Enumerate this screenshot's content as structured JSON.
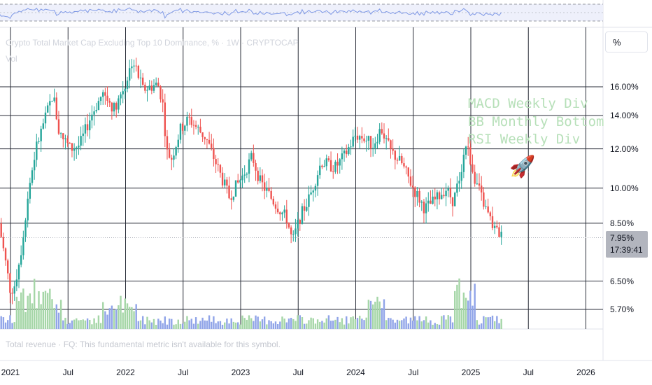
{
  "header": {
    "title": "Crypto Total Market Cap Excluding Top 10 Dominance, % · 1W · CRYPTOCAP",
    "volume_label": "Vol",
    "scale_mode": "%"
  },
  "annotations": [
    "MACD Weekly Div",
    "BB Monthly Bottom",
    "RSI Weekly Div"
  ],
  "price_tag": {
    "value": "7.95%",
    "countdown": "17:39:41"
  },
  "fundamental_note": "Total revenue · FQ: This fundamental metric isn't available for this symbol.",
  "colors": {
    "up": "#26a69a",
    "down": "#ef5350",
    "vol_up": "#a5d6a7",
    "vol_down": "#90a4e8",
    "rsi_line": "#7e98e6",
    "rocket": "rocket"
  },
  "chart_data": {
    "type": "candlestick",
    "title": "Crypto Total Market Cap Excluding Top 10 Dominance, % · 1W · CRYPTOCAP",
    "y_scale": "log",
    "y_ticks": [
      "16.00%",
      "14.00%",
      "12.00%",
      "10.00%",
      "8.50%",
      "6.50%",
      "5.70%"
    ],
    "y_tick_values": [
      16.0,
      14.0,
      12.0,
      10.0,
      8.5,
      6.5,
      5.7
    ],
    "x_ticks": [
      "2021",
      "Jul",
      "2022",
      "Jul",
      "2023",
      "Jul",
      "2024",
      "Jul",
      "2025",
      "Jul",
      "2026"
    ],
    "x_tick_years": [
      2021.0,
      2021.5,
      2022.0,
      2022.5,
      2023.0,
      2023.5,
      2024.0,
      2024.5,
      2025.0,
      2025.5,
      2026.0
    ],
    "xlim": [
      2021.0,
      2026.2
    ],
    "ylim": [
      5.5,
      20.0
    ],
    "series_close_anchors": [
      [
        2020.9,
        8.5
      ],
      [
        2021.0,
        6.2
      ],
      [
        2021.04,
        6.4
      ],
      [
        2021.1,
        7.7
      ],
      [
        2021.16,
        10.0
      ],
      [
        2021.22,
        12.0
      ],
      [
        2021.3,
        13.8
      ],
      [
        2021.37,
        15.5
      ],
      [
        2021.42,
        13.0
      ],
      [
        2021.52,
        12.0
      ],
      [
        2021.6,
        12.2
      ],
      [
        2021.7,
        14.0
      ],
      [
        2021.8,
        15.5
      ],
      [
        2021.9,
        14.5
      ],
      [
        2022.0,
        16.2
      ],
      [
        2022.06,
        18.2
      ],
      [
        2022.15,
        15.8
      ],
      [
        2022.28,
        16.2
      ],
      [
        2022.32,
        15.0
      ],
      [
        2022.36,
        11.8
      ],
      [
        2022.4,
        11.5
      ],
      [
        2022.48,
        13.2
      ],
      [
        2022.55,
        13.8
      ],
      [
        2022.7,
        12.6
      ],
      [
        2022.8,
        11.0
      ],
      [
        2022.9,
        9.6
      ],
      [
        2023.02,
        10.6
      ],
      [
        2023.1,
        11.6
      ],
      [
        2023.17,
        10.3
      ],
      [
        2023.3,
        9.3
      ],
      [
        2023.4,
        8.7
      ],
      [
        2023.45,
        7.8
      ],
      [
        2023.52,
        8.8
      ],
      [
        2023.6,
        9.6
      ],
      [
        2023.7,
        11.3
      ],
      [
        2023.82,
        11.0
      ],
      [
        2023.9,
        11.6
      ],
      [
        2024.0,
        12.8
      ],
      [
        2024.08,
        12.6
      ],
      [
        2024.15,
        12.2
      ],
      [
        2024.22,
        13.2
      ],
      [
        2024.3,
        11.9
      ],
      [
        2024.4,
        11.2
      ],
      [
        2024.5,
        10.0
      ],
      [
        2024.6,
        9.1
      ],
      [
        2024.7,
        9.5
      ],
      [
        2024.78,
        10.0
      ],
      [
        2024.85,
        9.4
      ],
      [
        2024.9,
        10.5
      ],
      [
        2024.96,
        12.3
      ],
      [
        2025.04,
        10.4
      ],
      [
        2025.12,
        9.2
      ],
      [
        2025.2,
        8.3
      ],
      [
        2025.28,
        7.95
      ]
    ],
    "volume_last": "relative",
    "rsi_note": "RSI pane shown above main chart"
  }
}
